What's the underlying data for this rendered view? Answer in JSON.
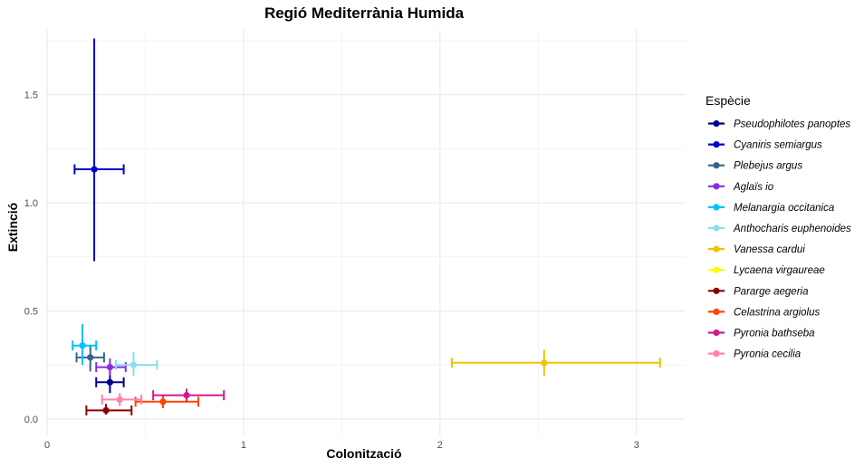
{
  "chart_data": {
    "type": "scatter",
    "title": "Regió Mediterrània Humida",
    "xlabel": "Colonització",
    "ylabel": "Extinció",
    "xlim": [
      0,
      3.25
    ],
    "ylim": [
      -0.08,
      1.8
    ],
    "x_ticks": [
      0,
      1,
      2,
      3
    ],
    "x_tick_labels": [
      "0",
      "1",
      "2",
      "3"
    ],
    "y_ticks": [
      0.0,
      0.5,
      1.0,
      1.5
    ],
    "y_tick_labels": [
      "0.0",
      "0.5",
      "1.0",
      "1.5"
    ],
    "grid": true,
    "legend_title": "Espècie",
    "legend_position": "right",
    "series": [
      {
        "name": "Pseudophilotes panoptes",
        "color": "#00008b",
        "x": 0.32,
        "y": 0.17,
        "x_err": [
          0.25,
          0.39
        ],
        "y_err": [
          0.12,
          0.22
        ]
      },
      {
        "name": "Cyaniris semiargus",
        "color": "#0000cd",
        "x": 0.24,
        "y": 1.155,
        "x_err": [
          0.14,
          0.39
        ],
        "y_err": [
          0.73,
          1.76
        ]
      },
      {
        "name": "Plebejus argus",
        "color": "#36648b",
        "x": 0.22,
        "y": 0.285,
        "x_err": [
          0.15,
          0.29
        ],
        "y_err": [
          0.22,
          0.34
        ]
      },
      {
        "name": "Aglaïs io",
        "color": "#8a2be2",
        "x": 0.32,
        "y": 0.24,
        "x_err": [
          0.25,
          0.4
        ],
        "y_err": [
          0.2,
          0.28
        ]
      },
      {
        "name": "Melanargia occitanica",
        "color": "#00bfff",
        "x": 0.18,
        "y": 0.34,
        "x_err": [
          0.13,
          0.25
        ],
        "y_err": [
          0.25,
          0.44
        ]
      },
      {
        "name": "Anthocharis euphenoides",
        "color": "#87e0f0",
        "x": 0.44,
        "y": 0.25,
        "x_err": [
          0.35,
          0.56
        ],
        "y_err": [
          0.2,
          0.31
        ]
      },
      {
        "name": "Vanessa cardui",
        "color": "#f0c400",
        "x": 2.53,
        "y": 0.26,
        "x_err": [
          2.06,
          3.12
        ],
        "y_err": [
          0.2,
          0.32
        ]
      },
      {
        "name": "Lycaena virgaureae",
        "color": "#ffff00",
        "x": null,
        "y": null,
        "x_err": null,
        "y_err": null
      },
      {
        "name": "Pararge aegeria",
        "color": "#8b0000",
        "x": 0.3,
        "y": 0.04,
        "x_err": [
          0.2,
          0.43
        ],
        "y_err": [
          0.02,
          0.07
        ]
      },
      {
        "name": "Celastrina argiolus",
        "color": "#ff4500",
        "x": 0.59,
        "y": 0.08,
        "x_err": [
          0.45,
          0.77
        ],
        "y_err": [
          0.05,
          0.11
        ]
      },
      {
        "name": "Pyronia bathseba",
        "color": "#cd1c8b",
        "x": 0.71,
        "y": 0.11,
        "x_err": [
          0.54,
          0.9
        ],
        "y_err": [
          0.08,
          0.14
        ]
      },
      {
        "name": "Pyronia cecilia",
        "color": "#ff82ab",
        "x": 0.37,
        "y": 0.09,
        "x_err": [
          0.28,
          0.48
        ],
        "y_err": [
          0.06,
          0.12
        ]
      }
    ]
  }
}
